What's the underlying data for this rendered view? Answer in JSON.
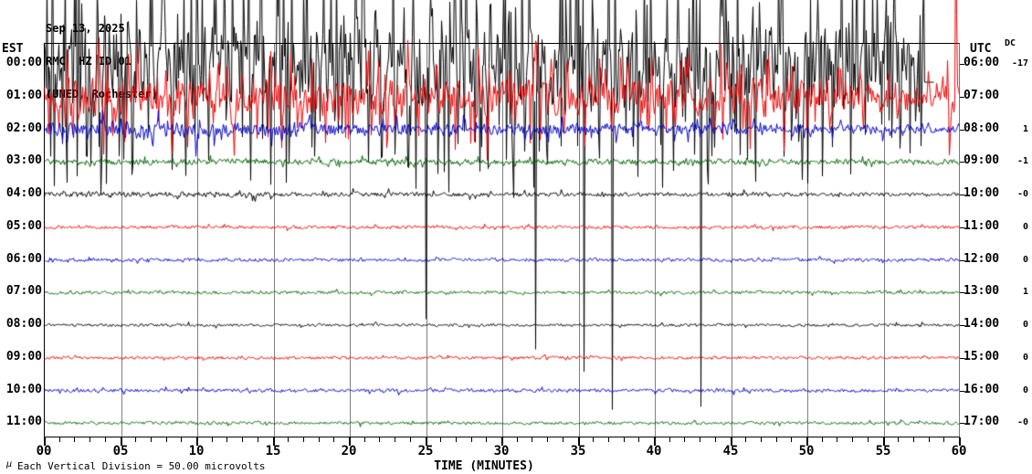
{
  "header": {
    "date_line": "Sep 13, 2025",
    "station_line": "RMC  HZ ID 01",
    "location_line": "(UNED, Rochester)"
  },
  "left_axis": {
    "title": "EST"
  },
  "right_axis": {
    "title": "UTC"
  },
  "dc_column": {
    "title": "DC"
  },
  "x_axis": {
    "title": "TIME (MINUTES)",
    "tick_labels": [
      "00",
      "05",
      "10",
      "15",
      "20",
      "25",
      "30",
      "35",
      "40",
      "45",
      "50",
      "55",
      "60"
    ],
    "minutes_per_major": 5,
    "minutes_total": 60
  },
  "footer": {
    "mu_mark": "µ",
    "scale_note": "Each Vertical Division =   50.00 microvolts"
  },
  "chart_data": {
    "type": "line",
    "kind": "helicorder-seismogram",
    "title": "Sep 13, 2025  RMC HZ ID 01 (UNED, Rochester)",
    "xlabel": "TIME (MINUTES)",
    "x_range_minutes": [
      0,
      60
    ],
    "minutes_per_row": 60,
    "vertical_division_microvolts": 50.0,
    "grid": "vertical gray line every 5 minutes",
    "legend_position": "none",
    "colors": {
      "black": "#000000",
      "red": "#ee0000",
      "blue": "#0000cc",
      "green": "#006400",
      "grid": "#808080"
    },
    "rows": [
      {
        "est": "00:00",
        "utc": "06:00",
        "dc": "-17",
        "color": "black",
        "hex": "#000000",
        "activity": "extreme saturated noise, spikes clip at top of image and reach far down; trace ends ~58 min",
        "amp": 38,
        "persist": 0.2,
        "spike": 120,
        "spike_p": 0.45,
        "mega_p": 0.006,
        "mega_min": 260,
        "mega_max": 400,
        "env": [
          [
            0,
            1
          ],
          [
            0.75,
            1
          ],
          [
            0.9,
            0.9
          ],
          [
            0.97,
            0.85
          ]
        ],
        "end_frac": 0.962,
        "tail_dx": 10,
        "tail_dy": 20
      },
      {
        "est": "01:00",
        "utc": "07:00",
        "dc": "",
        "color": "red",
        "hex": "#ee0000",
        "activity": "very strong noise, calms near 55 min then end burst",
        "amp": 17,
        "persist": 0.35,
        "spike": 50,
        "spike_p": 0.3,
        "mega_p": 0.003,
        "mega_min": 120,
        "mega_max": 230,
        "env": [
          [
            0,
            0.75
          ],
          [
            0.04,
            1
          ],
          [
            0.6,
            1
          ],
          [
            0.8,
            0.95
          ],
          [
            0.9,
            0.55
          ],
          [
            0.97,
            0.4
          ],
          [
            1,
            1.3
          ]
        ],
        "end_frac": 1
      },
      {
        "est": "02:00",
        "utc": "08:00",
        "dc": "1",
        "color": "blue",
        "hex": "#0000cc",
        "activity": "moderate noise decaying through the hour",
        "amp": 6.5,
        "persist": 0.35,
        "spike": 15,
        "spike_p": 0.12,
        "mega_p": 0.0015,
        "mega_min": 25,
        "mega_max": 40,
        "env": [
          [
            0,
            1.05
          ],
          [
            0.5,
            0.9
          ],
          [
            1,
            0.6
          ]
        ],
        "end_frac": 1
      },
      {
        "est": "03:00",
        "utc": "09:00",
        "dc": "-1",
        "color": "green",
        "hex": "#006400",
        "activity": "light noise",
        "amp": 3.1,
        "persist": 0.3,
        "spike": 6,
        "spike_p": 0.1,
        "mega_p": 0,
        "mega_min": 0,
        "mega_max": 0,
        "env": [
          [
            0,
            1
          ],
          [
            0.5,
            0.95
          ],
          [
            1,
            0.8
          ]
        ],
        "end_frac": 1
      },
      {
        "est": "04:00",
        "utc": "10:00",
        "dc": "-0",
        "color": "black",
        "hex": "#000000",
        "activity": "light noise, slightly higher first third",
        "amp": 2.1,
        "persist": 0.3,
        "spike": 4.5,
        "spike_p": 0.07,
        "mega_p": 0,
        "mega_min": 0,
        "mega_max": 0,
        "env": [
          [
            0,
            1.5
          ],
          [
            0.3,
            1.1
          ],
          [
            1,
            0.8
          ]
        ],
        "end_frac": 1
      },
      {
        "est": "05:00",
        "utc": "11:00",
        "dc": "0",
        "color": "red",
        "hex": "#ee0000",
        "activity": "quiet background",
        "amp": 1.6,
        "persist": 0.3,
        "spike": 3,
        "spike_p": 0.05,
        "mega_p": 0,
        "mega_min": 0,
        "mega_max": 0,
        "env": [
          [
            0,
            1
          ],
          [
            1,
            1
          ]
        ],
        "end_frac": 1
      },
      {
        "est": "06:00",
        "utc": "12:00",
        "dc": "0",
        "color": "blue",
        "hex": "#0000cc",
        "activity": "quiet background",
        "amp": 1.7,
        "persist": 0.3,
        "spike": 3,
        "spike_p": 0.05,
        "mega_p": 0,
        "mega_min": 0,
        "mega_max": 0,
        "env": [
          [
            0,
            1
          ],
          [
            1,
            1
          ]
        ],
        "end_frac": 1
      },
      {
        "est": "07:00",
        "utc": "13:00",
        "dc": "1",
        "color": "green",
        "hex": "#006400",
        "activity": "quiet background",
        "amp": 1.6,
        "persist": 0.3,
        "spike": 3,
        "spike_p": 0.05,
        "mega_p": 0,
        "mega_min": 0,
        "mega_max": 0,
        "env": [
          [
            0,
            1
          ],
          [
            1,
            1
          ]
        ],
        "end_frac": 1
      },
      {
        "est": "08:00",
        "utc": "14:00",
        "dc": "0",
        "color": "black",
        "hex": "#000000",
        "activity": "quiet background",
        "amp": 1.4,
        "persist": 0.3,
        "spike": 2.5,
        "spike_p": 0.04,
        "mega_p": 0,
        "mega_min": 0,
        "mega_max": 0,
        "env": [
          [
            0,
            1
          ],
          [
            1,
            1
          ]
        ],
        "end_frac": 1
      },
      {
        "est": "09:00",
        "utc": "15:00",
        "dc": "0",
        "color": "red",
        "hex": "#ee0000",
        "activity": "quiet background",
        "amp": 1.5,
        "persist": 0.3,
        "spike": 2.5,
        "spike_p": 0.04,
        "mega_p": 0,
        "mega_min": 0,
        "mega_max": 0,
        "env": [
          [
            0,
            1
          ],
          [
            1,
            1
          ]
        ],
        "end_frac": 1
      },
      {
        "est": "10:00",
        "utc": "16:00",
        "dc": "0",
        "color": "blue",
        "hex": "#0000cc",
        "activity": "quiet background with tiny bursts",
        "amp": 1.7,
        "persist": 0.3,
        "spike": 3.5,
        "spike_p": 0.06,
        "mega_p": 0,
        "mega_min": 0,
        "mega_max": 0,
        "env": [
          [
            0,
            1
          ],
          [
            1,
            1
          ]
        ],
        "end_frac": 1
      },
      {
        "est": "11:00",
        "utc": "17:00",
        "dc": "-0",
        "color": "green",
        "hex": "#006400",
        "activity": "quiet background",
        "amp": 1.5,
        "persist": 0.3,
        "spike": 3,
        "spike_p": 0.05,
        "mega_p": 0,
        "mega_min": 0,
        "mega_max": 0,
        "env": [
          [
            0,
            1
          ],
          [
            1,
            1
          ]
        ],
        "end_frac": 1
      }
    ]
  }
}
